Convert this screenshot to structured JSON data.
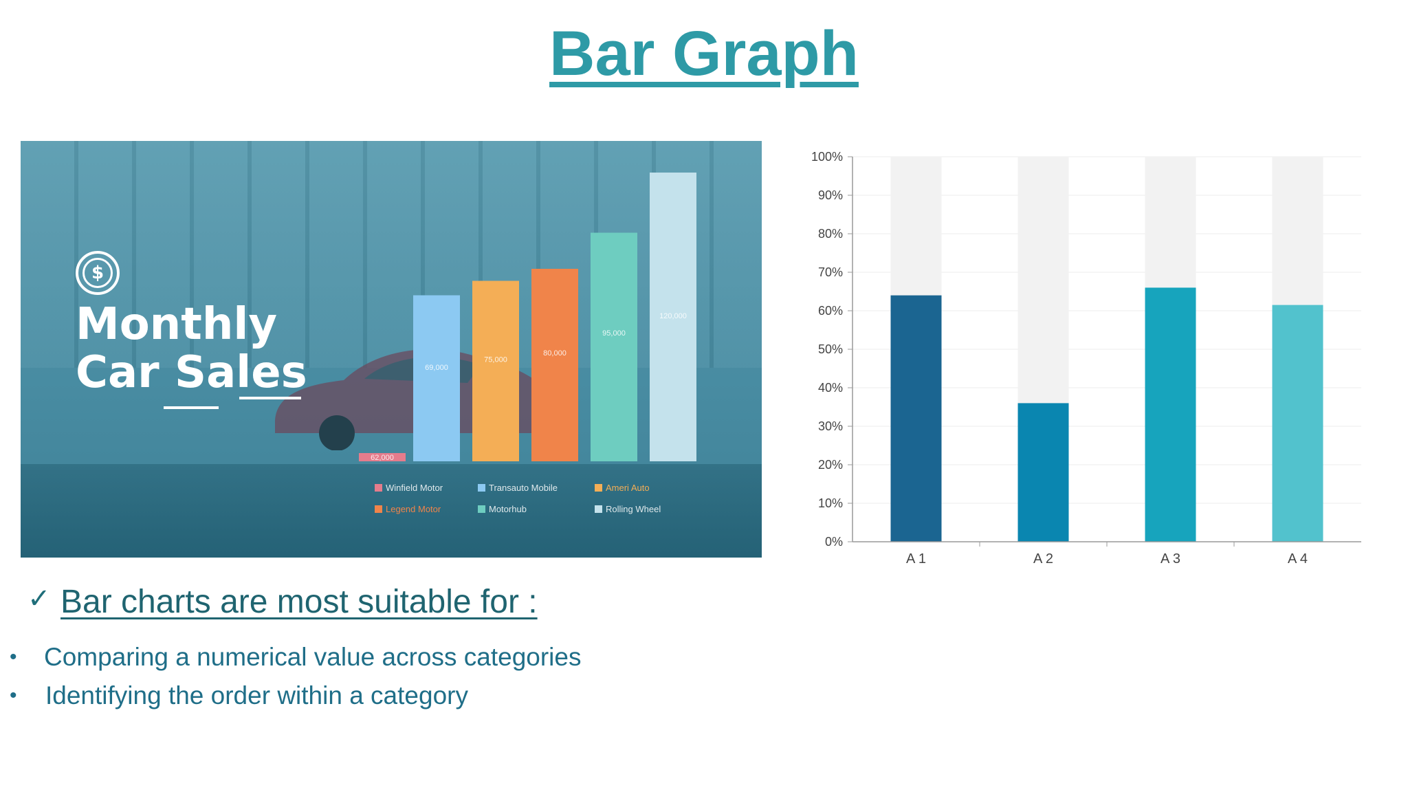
{
  "page": {
    "title": "Bar Graph",
    "subtitle": "Bar charts are most suitable for :",
    "bullets": [
      "Comparing a numerical value across categories",
      "Identifying the order within a category"
    ]
  },
  "image_panel": {
    "title_line1": "Monthly",
    "title_line2": "Car Sales",
    "icon": "dollar-coin-icon"
  },
  "chart_data": [
    {
      "type": "bar",
      "title": "",
      "categories": [
        "Winfield Motor",
        "Transauto Mobile",
        "Ameri Auto",
        "Legend Motor",
        "Motorhub",
        "Rolling Wheel"
      ],
      "values": [
        62000,
        69000,
        75000,
        80000,
        95000,
        120000
      ],
      "value_labels": [
        "62,000",
        "69,000",
        "75,000",
        "80,000",
        "95,000",
        "120,000"
      ],
      "legend": [
        "Winfield Motor",
        "Transauto Mobile",
        "Ameri Auto",
        "Legend Motor",
        "Motorhub",
        "Rolling Wheel"
      ],
      "colors": [
        "#e57c8c",
        "#8cc9f2",
        "#f4ae56",
        "#f0844a",
        "#6ecdc0",
        "#c4e2ec"
      ],
      "legend_position": "bottom"
    },
    {
      "type": "bar",
      "stacked": "100%",
      "title": "",
      "categories": [
        "A 1",
        "A 2",
        "A 3",
        "A 4"
      ],
      "series": [
        {
          "values": [
            64,
            36,
            66,
            61.5
          ]
        },
        {
          "values": [
            36,
            64,
            34,
            38.5
          ]
        }
      ],
      "colors": [
        "#1b6591",
        "#0a86b0",
        "#17a4bd",
        "#52c2cd"
      ],
      "remainder_color": "#f2f2f2",
      "y_ticks": [
        "0%",
        "10%",
        "20%",
        "30%",
        "40%",
        "50%",
        "60%",
        "70%",
        "80%",
        "90%",
        "100%"
      ],
      "ylim": [
        0,
        100
      ],
      "grid": true
    }
  ]
}
